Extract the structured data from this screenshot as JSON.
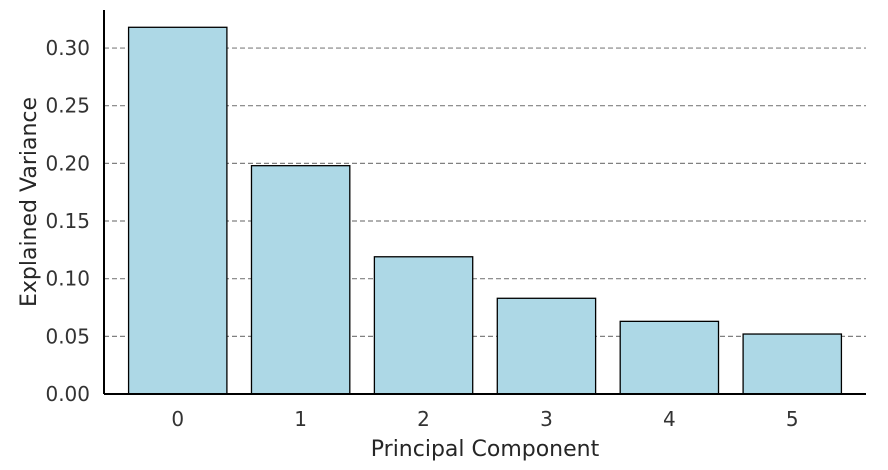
{
  "chart_data": {
    "type": "bar",
    "categories": [
      "0",
      "1",
      "2",
      "3",
      "4",
      "5"
    ],
    "values": [
      0.318,
      0.198,
      0.119,
      0.083,
      0.063,
      0.052
    ],
    "xlabel": "Principal Component",
    "ylabel": "Explained Variance",
    "ylim": [
      0,
      0.333
    ],
    "yticks": [
      "0.00",
      "0.05",
      "0.10",
      "0.15",
      "0.20",
      "0.25",
      "0.30"
    ],
    "grid": "y-dashed",
    "colors": {
      "bar_fill": "#add8e6",
      "bar_edge": "#000000",
      "grid": "#808080",
      "axis": "#000000"
    }
  }
}
